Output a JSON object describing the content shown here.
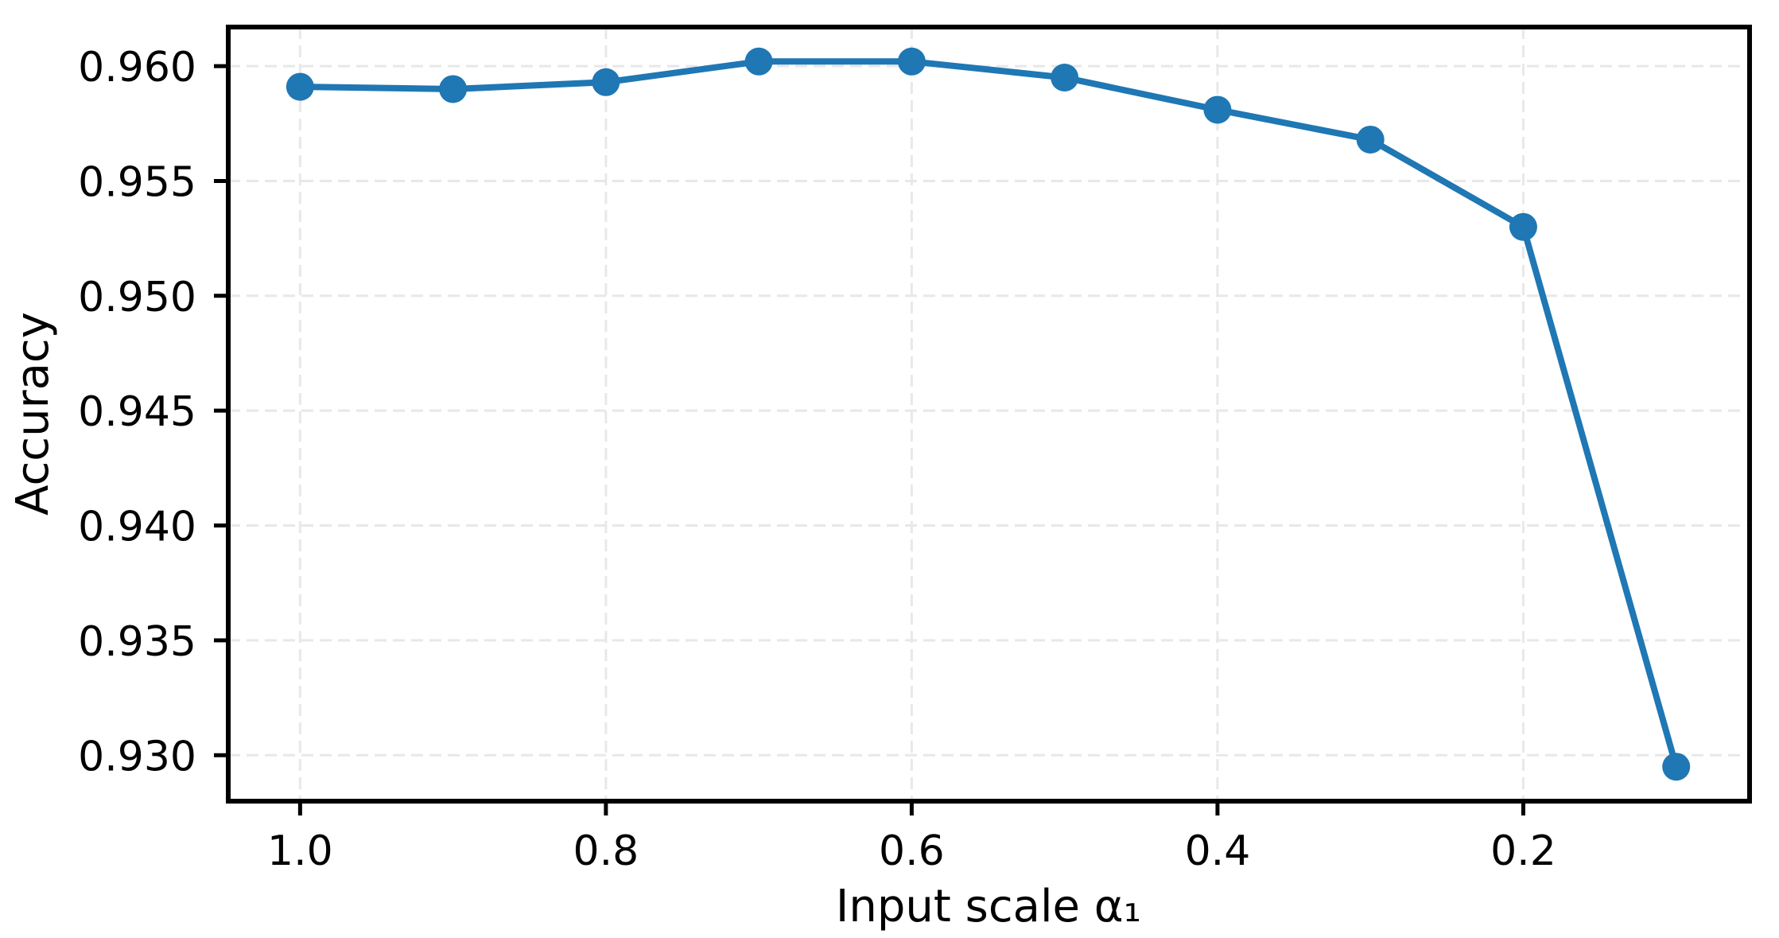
{
  "chart_data": {
    "type": "line",
    "title": "",
    "xlabel": "Input scale α₁",
    "ylabel": "Accuracy",
    "x": [
      1.0,
      0.9,
      0.8,
      0.7,
      0.6,
      0.5,
      0.4,
      0.3,
      0.2,
      0.1
    ],
    "series": [
      {
        "name": "Accuracy",
        "values": [
          0.9591,
          0.959,
          0.9593,
          0.9602,
          0.9602,
          0.9595,
          0.9581,
          0.9568,
          0.953,
          0.9295
        ]
      }
    ],
    "x_ticks": [
      1.0,
      0.8,
      0.6,
      0.4,
      0.2
    ],
    "x_tick_labels": [
      "1.0",
      "0.8",
      "0.6",
      "0.4",
      "0.2"
    ],
    "y_ticks": [
      0.93,
      0.935,
      0.94,
      0.945,
      0.95,
      0.955,
      0.96
    ],
    "y_tick_labels": [
      "0.930",
      "0.935",
      "0.940",
      "0.945",
      "0.950",
      "0.955",
      "0.960"
    ],
    "xlim": [
      1.047,
      0.052
    ],
    "ylim": [
      0.928,
      0.9617
    ],
    "x_axis_inverted": true,
    "grid": true,
    "grid_style": "dashed",
    "legend_position": "none",
    "line_color": "#1f77b4",
    "marker": "circle",
    "grid_color": "#e8e8e8",
    "spine_color": "#000000",
    "background_color": "#ffffff"
  }
}
